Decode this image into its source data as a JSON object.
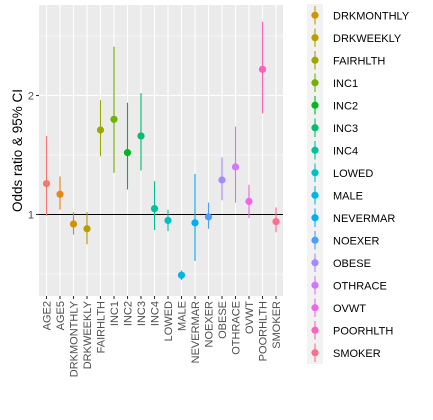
{
  "chart_data": {
    "type": "scatter",
    "subtype": "point-with-error-bars",
    "xlabel": "",
    "ylabel": "Odds ratio & 95% CI",
    "y_ticks": [
      1,
      2
    ],
    "y_tick_labels": [
      "1",
      "2"
    ],
    "ylim": [
      0.45,
      2.62
    ],
    "reference_line_y": 1,
    "grid": true,
    "legend_position": "right",
    "x_tick_rotation": "vertical",
    "categories": [
      "AGE2",
      "AGE5",
      "DRKMONTHLY",
      "DRKWEEKLY",
      "FAIRHLTH",
      "INC1",
      "INC2",
      "INC3",
      "INC4",
      "LOWED",
      "MALE",
      "NEVERMAR",
      "NOEXER",
      "OBESE",
      "OTHRACE",
      "OVWT",
      "POORHLTH",
      "SMOKER"
    ],
    "points": [
      {
        "label": "AGE2",
        "estimate": 1.26,
        "ci_low": 0.99,
        "ci_high": 1.66,
        "color": "#F8766D",
        "in_legend": false
      },
      {
        "label": "AGE5",
        "estimate": 1.17,
        "ci_low": 1.04,
        "ci_high": 1.32,
        "color": "#E7861B",
        "in_legend": false
      },
      {
        "label": "DRKMONTHLY",
        "estimate": 0.92,
        "ci_low": 0.83,
        "ci_high": 1.02,
        "color": "#D39200",
        "in_legend": true
      },
      {
        "label": "DRKWEEKLY",
        "estimate": 0.88,
        "ci_low": 0.75,
        "ci_high": 1.02,
        "color": "#BB9D00",
        "in_legend": true
      },
      {
        "label": "FAIRHLTH",
        "estimate": 1.71,
        "ci_low": 1.49,
        "ci_high": 1.96,
        "color": "#9DA700",
        "in_legend": true
      },
      {
        "label": "INC1",
        "estimate": 1.8,
        "ci_low": 1.35,
        "ci_high": 2.41,
        "color": "#73B000",
        "in_legend": true
      },
      {
        "label": "INC2",
        "estimate": 1.52,
        "ci_low": 1.21,
        "ci_high": 1.94,
        "color": "#00B81F",
        "in_legend": true
      },
      {
        "label": "INC3",
        "estimate": 1.66,
        "ci_low": 1.37,
        "ci_high": 2.02,
        "color": "#00BE6C",
        "in_legend": true
      },
      {
        "label": "INC4",
        "estimate": 1.05,
        "ci_low": 0.87,
        "ci_high": 1.28,
        "color": "#00C19C",
        "in_legend": true
      },
      {
        "label": "LOWED",
        "estimate": 0.95,
        "ci_low": 0.86,
        "ci_high": 1.04,
        "color": "#00C0C7",
        "in_legend": true
      },
      {
        "label": "MALE",
        "estimate": 0.49,
        "ci_low": 0.45,
        "ci_high": 0.53,
        "color": "#00B8E5",
        "in_legend": true
      },
      {
        "label": "NEVERMAR",
        "estimate": 0.93,
        "ci_low": 0.61,
        "ci_high": 1.34,
        "color": "#00ACFC",
        "in_legend": true
      },
      {
        "label": "NOEXER",
        "estimate": 0.98,
        "ci_low": 0.88,
        "ci_high": 1.1,
        "color": "#4C9FFF",
        "in_legend": true
      },
      {
        "label": "OBESE",
        "estimate": 1.29,
        "ci_low": 1.12,
        "ci_high": 1.48,
        "color": "#A58AFF",
        "in_legend": true
      },
      {
        "label": "OTHRACE",
        "estimate": 1.4,
        "ci_low": 1.1,
        "ci_high": 1.74,
        "color": "#D376FF",
        "in_legend": true
      },
      {
        "label": "OVWT",
        "estimate": 1.11,
        "ci_low": 0.97,
        "ci_high": 1.25,
        "color": "#F166E8",
        "in_legend": true
      },
      {
        "label": "POORHLTH",
        "estimate": 2.22,
        "ci_low": 1.85,
        "ci_high": 2.62,
        "color": "#FF62BC",
        "in_legend": true
      },
      {
        "label": "SMOKER",
        "estimate": 0.94,
        "ci_low": 0.85,
        "ci_high": 1.06,
        "color": "#FF6C91",
        "in_legend": true
      }
    ]
  },
  "colors": {
    "panel_background": "#EBEBEB",
    "grid_major": "#FFFFFF",
    "reference_line": "#000000",
    "axis_text": "#4D4D4D",
    "legend_key_background": "#F2F2F2"
  }
}
